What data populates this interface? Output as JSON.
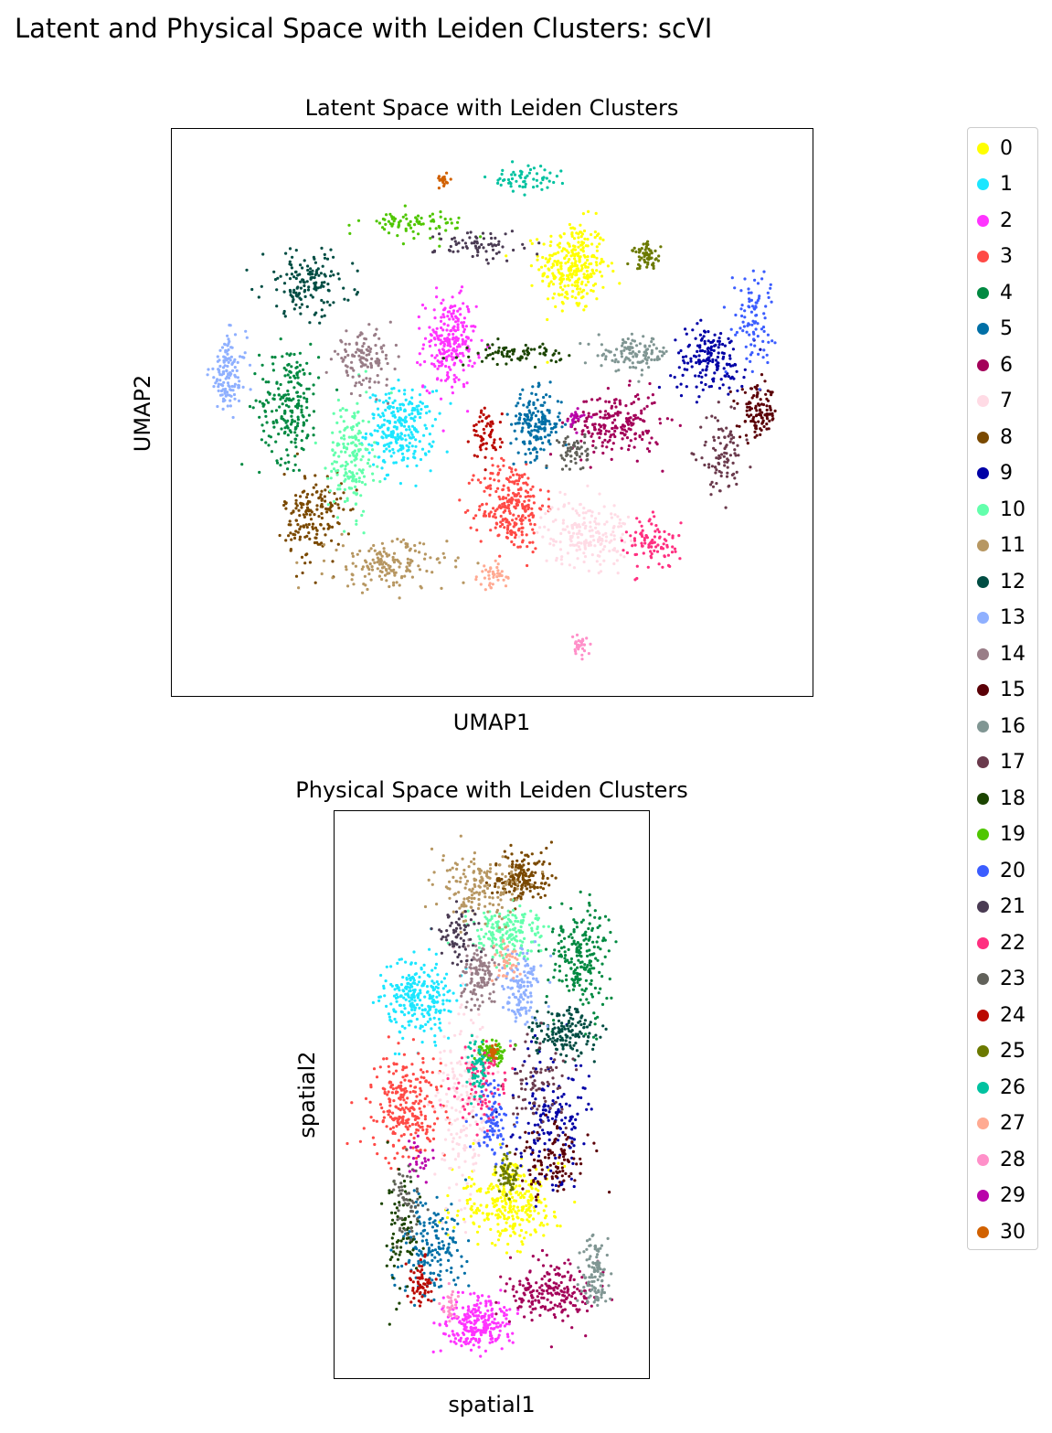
{
  "figure": {
    "title": "Latent and Physical Space with Leiden Clusters: scVI"
  },
  "legend": {
    "placement": "right",
    "entries": [
      {
        "label": "0",
        "color": "#ffff00"
      },
      {
        "label": "1",
        "color": "#1ce6ff"
      },
      {
        "label": "2",
        "color": "#ff34ff"
      },
      {
        "label": "3",
        "color": "#ff4a46"
      },
      {
        "label": "4",
        "color": "#008941"
      },
      {
        "label": "5",
        "color": "#006fa6"
      },
      {
        "label": "6",
        "color": "#a30059"
      },
      {
        "label": "7",
        "color": "#ffdbe5"
      },
      {
        "label": "8",
        "color": "#7a4900"
      },
      {
        "label": "9",
        "color": "#0000a6"
      },
      {
        "label": "10",
        "color": "#63ffac"
      },
      {
        "label": "11",
        "color": "#b79762"
      },
      {
        "label": "12",
        "color": "#004d43"
      },
      {
        "label": "13",
        "color": "#8fb0ff"
      },
      {
        "label": "14",
        "color": "#997d87"
      },
      {
        "label": "15",
        "color": "#5a0007"
      },
      {
        "label": "16",
        "color": "#809693"
      },
      {
        "label": "17",
        "color": "#6a3a4c"
      },
      {
        "label": "18",
        "color": "#1b4400"
      },
      {
        "label": "19",
        "color": "#4fc601"
      },
      {
        "label": "20",
        "color": "#3b5dff"
      },
      {
        "label": "21",
        "color": "#4a3b53"
      },
      {
        "label": "22",
        "color": "#ff2f80"
      },
      {
        "label": "23",
        "color": "#61615a"
      },
      {
        "label": "24",
        "color": "#ba0900"
      },
      {
        "label": "25",
        "color": "#6b7900"
      },
      {
        "label": "26",
        "color": "#00c2a0"
      },
      {
        "label": "27",
        "color": "#ffaa92"
      },
      {
        "label": "28",
        "color": "#ff90c9"
      },
      {
        "label": "29",
        "color": "#b903aa"
      },
      {
        "label": "30",
        "color": "#d16100"
      }
    ]
  },
  "chart_data": [
    {
      "type": "scatter",
      "title": "Latent Space with Leiden Clusters",
      "xlabel": "UMAP1",
      "ylabel": "UMAP2",
      "xlim": [
        0,
        100
      ],
      "ylim": [
        0,
        100
      ],
      "grid": false,
      "ticks": false,
      "clusters": [
        {
          "label": "0",
          "center": [
            63,
            77
          ],
          "spread": [
            4.5,
            7
          ],
          "n": 300
        },
        {
          "label": "1",
          "center": [
            35,
            47
          ],
          "spread": [
            4.5,
            6
          ],
          "n": 260
        },
        {
          "label": "2",
          "center": [
            43,
            63
          ],
          "spread": [
            3.5,
            7
          ],
          "n": 240
        },
        {
          "label": "3",
          "center": [
            53,
            33
          ],
          "spread": [
            4.5,
            7
          ],
          "n": 260
        },
        {
          "label": "4",
          "center": [
            17,
            52
          ],
          "spread": [
            4,
            9
          ],
          "n": 210
        },
        {
          "label": "5",
          "center": [
            57,
            48
          ],
          "spread": [
            3.5,
            5
          ],
          "n": 170
        },
        {
          "label": "6",
          "center": [
            70,
            48
          ],
          "spread": [
            6,
            5
          ],
          "n": 200
        },
        {
          "label": "7",
          "center": [
            65,
            28
          ],
          "spread": [
            6,
            5
          ],
          "n": 200
        },
        {
          "label": "8",
          "center": [
            21,
            31
          ],
          "spread": [
            4,
            7
          ],
          "n": 170
        },
        {
          "label": "9",
          "center": [
            85,
            60
          ],
          "spread": [
            5,
            5
          ],
          "n": 160
        },
        {
          "label": "10",
          "center": [
            27,
            42
          ],
          "spread": [
            3,
            9
          ],
          "n": 180
        },
        {
          "label": "11",
          "center": [
            33,
            22
          ],
          "spread": [
            8,
            4
          ],
          "n": 160
        },
        {
          "label": "12",
          "center": [
            20,
            74
          ],
          "spread": [
            6,
            5
          ],
          "n": 150
        },
        {
          "label": "13",
          "center": [
            7,
            57
          ],
          "spread": [
            2.5,
            6
          ],
          "n": 130
        },
        {
          "label": "14",
          "center": [
            29,
            60
          ],
          "spread": [
            4,
            4
          ],
          "n": 120
        },
        {
          "label": "15",
          "center": [
            93,
            50
          ],
          "spread": [
            2.5,
            4
          ],
          "n": 110
        },
        {
          "label": "16",
          "center": [
            73,
            61
          ],
          "spread": [
            5,
            2.5
          ],
          "n": 110
        },
        {
          "label": "17",
          "center": [
            87,
            42
          ],
          "spread": [
            3,
            6
          ],
          "n": 90
        },
        {
          "label": "18",
          "center": [
            54,
            61
          ],
          "spread": [
            6,
            1.5
          ],
          "n": 80
        },
        {
          "label": "19",
          "center": [
            37,
            85
          ],
          "spread": [
            7,
            2
          ],
          "n": 80
        },
        {
          "label": "20",
          "center": [
            92,
            68
          ],
          "spread": [
            3,
            7
          ],
          "n": 90
        },
        {
          "label": "21",
          "center": [
            48,
            81
          ],
          "spread": [
            6,
            2.5
          ],
          "n": 70
        },
        {
          "label": "22",
          "center": [
            76,
            26
          ],
          "spread": [
            3.5,
            4
          ],
          "n": 90
        },
        {
          "label": "23",
          "center": [
            63,
            43
          ],
          "spread": [
            2,
            3
          ],
          "n": 60
        },
        {
          "label": "24",
          "center": [
            49,
            46
          ],
          "spread": [
            2,
            4
          ],
          "n": 60
        },
        {
          "label": "25",
          "center": [
            75,
            79
          ],
          "spread": [
            2,
            2
          ],
          "n": 60
        },
        {
          "label": "26",
          "center": [
            55,
            93
          ],
          "spread": [
            5,
            2
          ],
          "n": 60
        },
        {
          "label": "27",
          "center": [
            50,
            20
          ],
          "spread": [
            2,
            2
          ],
          "n": 40
        },
        {
          "label": "28",
          "center": [
            64,
            7
          ],
          "spread": [
            1,
            1.5
          ],
          "n": 30
        },
        {
          "label": "29",
          "center": [
            63,
            49
          ],
          "spread": [
            1.5,
            1.5
          ],
          "n": 25
        },
        {
          "label": "30",
          "center": [
            42,
            93
          ],
          "spread": [
            1,
            1
          ],
          "n": 20
        }
      ]
    },
    {
      "type": "scatter",
      "title": "Physical Space with Leiden Clusters",
      "xlabel": "spatial1",
      "ylabel": "spatial2",
      "xlim": [
        0,
        100
      ],
      "ylim": [
        0,
        100
      ],
      "grid": false,
      "ticks": false,
      "clusters": [
        {
          "label": "0",
          "center": [
            55,
            30
          ],
          "spread": [
            15,
            6
          ],
          "n": 300
        },
        {
          "label": "1",
          "center": [
            25,
            68
          ],
          "spread": [
            10,
            6
          ],
          "n": 260
        },
        {
          "label": "2",
          "center": [
            45,
            8
          ],
          "spread": [
            10,
            4
          ],
          "n": 240
        },
        {
          "label": "3",
          "center": [
            20,
            48
          ],
          "spread": [
            10,
            8
          ],
          "n": 260
        },
        {
          "label": "4",
          "center": [
            80,
            76
          ],
          "spread": [
            8,
            8
          ],
          "n": 210
        },
        {
          "label": "5",
          "center": [
            28,
            22
          ],
          "spread": [
            10,
            8
          ],
          "n": 170
        },
        {
          "label": "6",
          "center": [
            70,
            14
          ],
          "spread": [
            12,
            5
          ],
          "n": 200
        },
        {
          "label": "7",
          "center": [
            40,
            50
          ],
          "spread": [
            8,
            15
          ],
          "n": 200
        },
        {
          "label": "8",
          "center": [
            60,
            90
          ],
          "spread": [
            8,
            4
          ],
          "n": 170
        },
        {
          "label": "9",
          "center": [
            70,
            45
          ],
          "spread": [
            10,
            10
          ],
          "n": 160
        },
        {
          "label": "10",
          "center": [
            55,
            80
          ],
          "spread": [
            10,
            4
          ],
          "n": 180
        },
        {
          "label": "11",
          "center": [
            45,
            88
          ],
          "spread": [
            12,
            5
          ],
          "n": 160
        },
        {
          "label": "12",
          "center": [
            75,
            62
          ],
          "spread": [
            10,
            4
          ],
          "n": 150
        },
        {
          "label": "13",
          "center": [
            60,
            70
          ],
          "spread": [
            6,
            6
          ],
          "n": 130
        },
        {
          "label": "14",
          "center": [
            45,
            72
          ],
          "spread": [
            5,
            5
          ],
          "n": 120
        },
        {
          "label": "15",
          "center": [
            72,
            38
          ],
          "spread": [
            10,
            5
          ],
          "n": 110
        },
        {
          "label": "16",
          "center": [
            85,
            18
          ],
          "spread": [
            4,
            6
          ],
          "n": 110
        },
        {
          "label": "17",
          "center": [
            65,
            52
          ],
          "spread": [
            10,
            8
          ],
          "n": 90
        },
        {
          "label": "18",
          "center": [
            18,
            25
          ],
          "spread": [
            5,
            10
          ],
          "n": 80
        },
        {
          "label": "19",
          "center": [
            50,
            58
          ],
          "spread": [
            4,
            2
          ],
          "n": 80
        },
        {
          "label": "20",
          "center": [
            50,
            45
          ],
          "spread": [
            5,
            6
          ],
          "n": 90
        },
        {
          "label": "21",
          "center": [
            38,
            80
          ],
          "spread": [
            5,
            4
          ],
          "n": 70
        },
        {
          "label": "22",
          "center": [
            45,
            52
          ],
          "spread": [
            8,
            6
          ],
          "n": 90
        },
        {
          "label": "23",
          "center": [
            20,
            30
          ],
          "spread": [
            4,
            6
          ],
          "n": 60
        },
        {
          "label": "24",
          "center": [
            25,
            15
          ],
          "spread": [
            4,
            4
          ],
          "n": 60
        },
        {
          "label": "25",
          "center": [
            55,
            35
          ],
          "spread": [
            3,
            3
          ],
          "n": 60
        },
        {
          "label": "26",
          "center": [
            45,
            55
          ],
          "spread": [
            3,
            5
          ],
          "n": 60
        },
        {
          "label": "27",
          "center": [
            55,
            75
          ],
          "spread": [
            4,
            3
          ],
          "n": 40
        },
        {
          "label": "28",
          "center": [
            35,
            12
          ],
          "spread": [
            3,
            3
          ],
          "n": 30
        },
        {
          "label": "29",
          "center": [
            25,
            38
          ],
          "spread": [
            4,
            3
          ],
          "n": 25
        },
        {
          "label": "30",
          "center": [
            50,
            58
          ],
          "spread": [
            1,
            1
          ],
          "n": 20
        }
      ]
    }
  ]
}
